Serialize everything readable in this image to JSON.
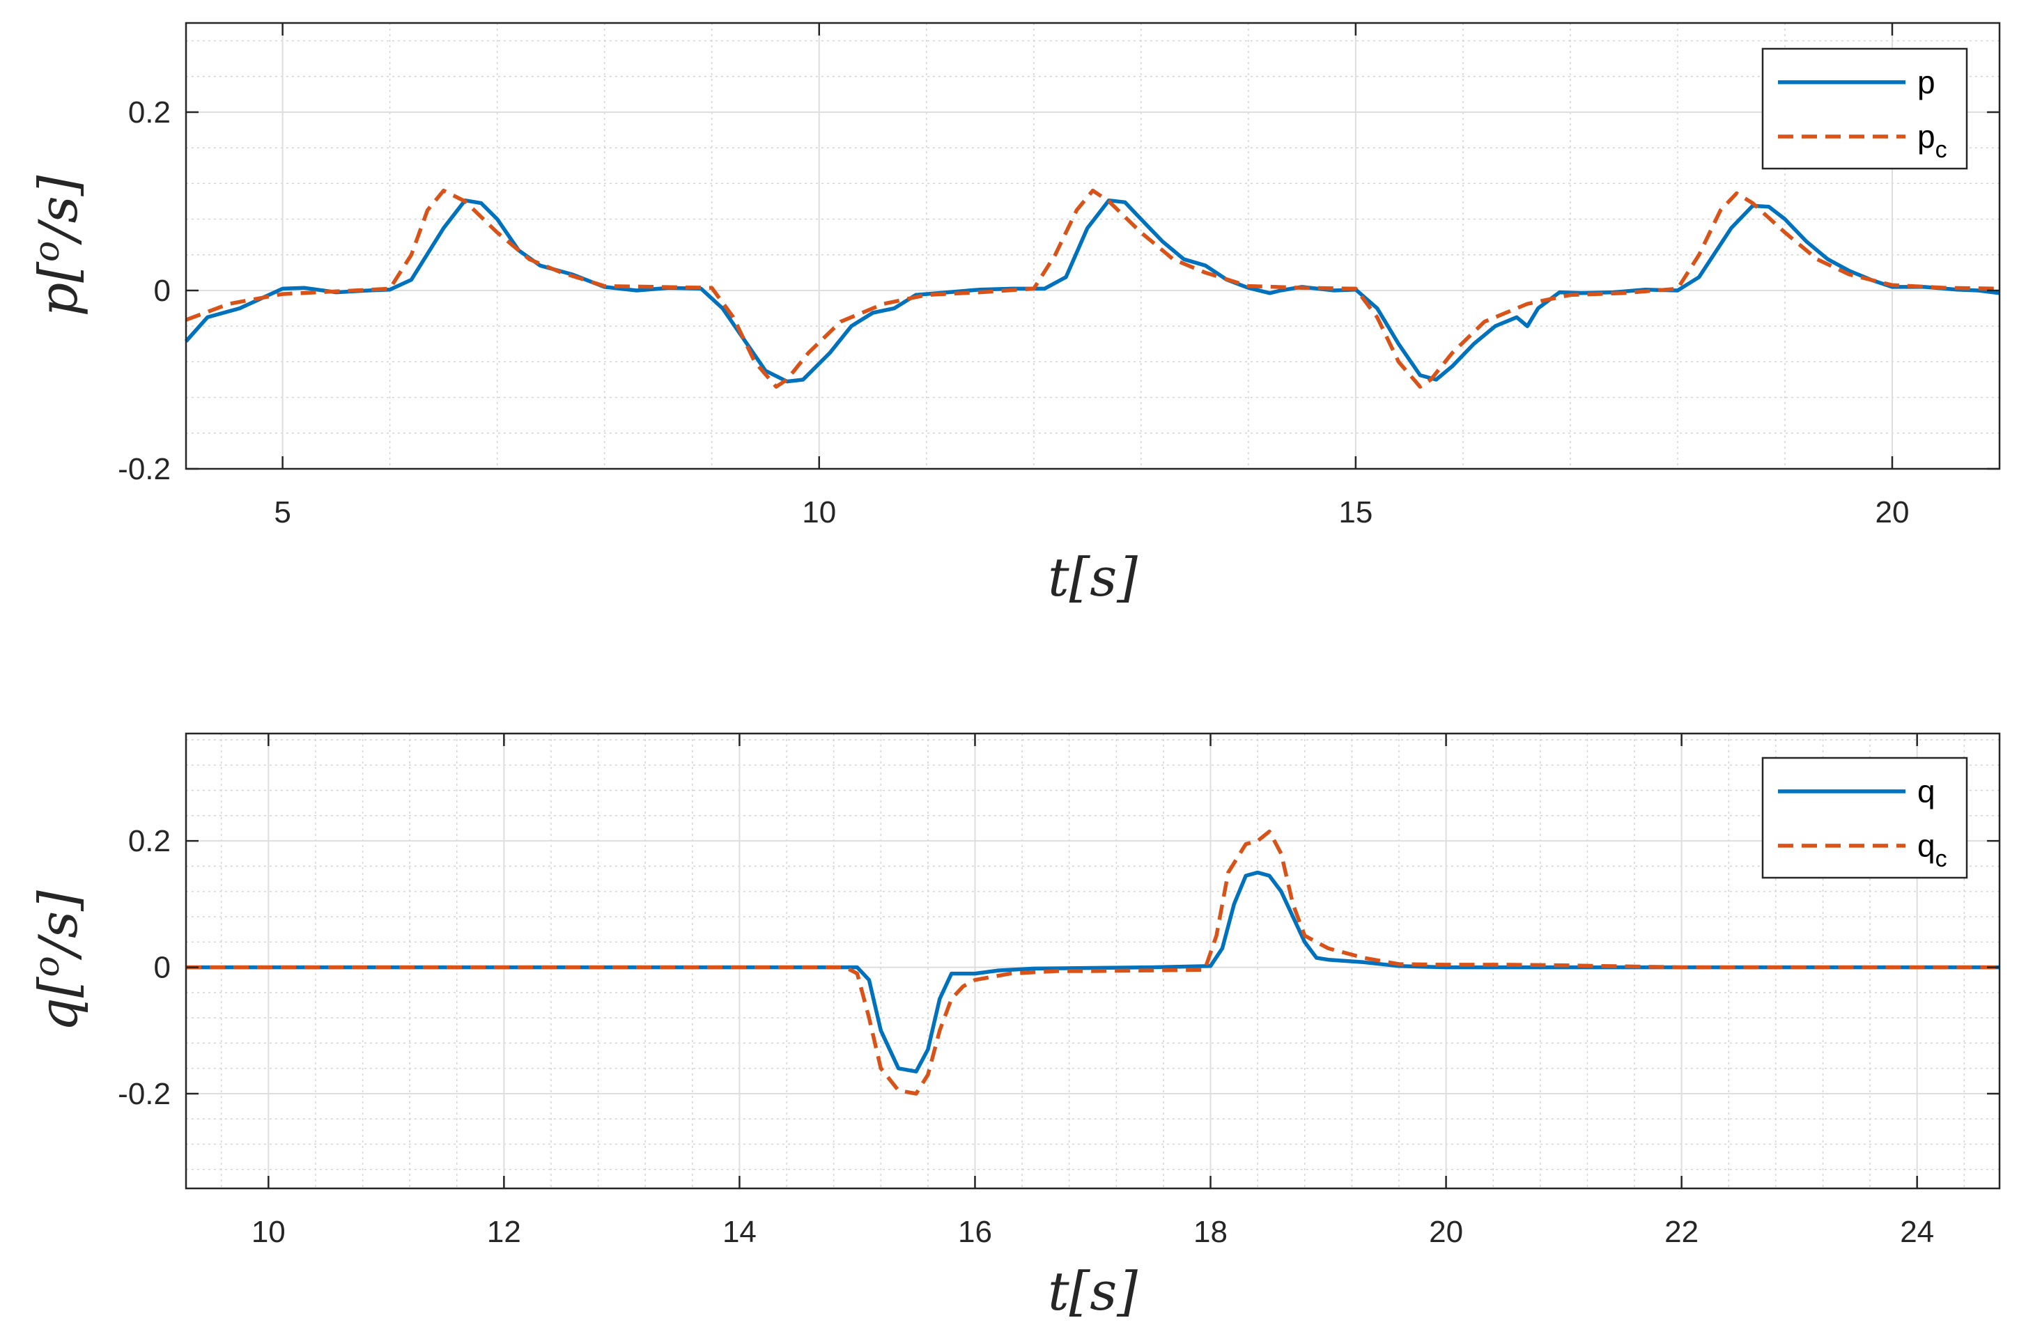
{
  "chart_data": [
    {
      "type": "line",
      "title": "",
      "xlabel": "t[s]",
      "ylabel": "p[o/s]",
      "ylabel_parts": {
        "var": "p",
        "sup": "o",
        "unit": "/s"
      },
      "xlim": [
        4.1,
        21
      ],
      "ylim": [
        -0.2,
        0.3
      ],
      "xticks": [
        5,
        10,
        15,
        20
      ],
      "xtick_labels": [
        "5",
        "10",
        "15",
        "20"
      ],
      "yticks": [
        -0.2,
        0,
        0.2
      ],
      "ytick_labels": [
        "-0.2",
        "0",
        "0.2"
      ],
      "grid": true,
      "minor_grid": true,
      "legend_position": "top-right",
      "series": [
        {
          "name": "p",
          "legend_main": "p",
          "legend_sub": "",
          "color": "#0072BD",
          "style": "solid",
          "x": [
            4.1,
            4.3,
            4.6,
            5.0,
            5.2,
            5.5,
            5.8,
            6.0,
            6.2,
            6.5,
            6.7,
            6.85,
            7.0,
            7.2,
            7.4,
            7.7,
            8.0,
            8.3,
            8.6,
            8.9,
            9.1,
            9.3,
            9.5,
            9.7,
            9.85,
            10.1,
            10.3,
            10.5,
            10.7,
            10.9,
            11.2,
            11.5,
            11.8,
            12.1,
            12.3,
            12.5,
            12.7,
            12.85,
            13.0,
            13.2,
            13.4,
            13.6,
            13.8,
            14.0,
            14.2,
            14.3,
            14.5,
            14.8,
            15.0,
            15.2,
            15.4,
            15.6,
            15.75,
            15.9,
            16.1,
            16.3,
            16.5,
            16.6,
            16.7,
            16.9,
            17.1,
            17.4,
            17.7,
            18.0,
            18.2,
            18.5,
            18.7,
            18.85,
            19.0,
            19.2,
            19.4,
            19.6,
            19.8,
            20.0,
            20.3,
            20.6,
            20.8,
            21.0
          ],
          "y": [
            -0.057,
            -0.03,
            -0.02,
            0.002,
            0.003,
            -0.002,
            0.0,
            0.001,
            0.012,
            0.07,
            0.101,
            0.098,
            0.08,
            0.045,
            0.028,
            0.018,
            0.004,
            0.0,
            0.003,
            0.002,
            -0.02,
            -0.055,
            -0.09,
            -0.102,
            -0.1,
            -0.07,
            -0.04,
            -0.025,
            -0.02,
            -0.005,
            -0.002,
            0.001,
            0.002,
            0.002,
            0.015,
            0.07,
            0.101,
            0.099,
            0.08,
            0.055,
            0.035,
            0.028,
            0.012,
            0.003,
            -0.003,
            0.0,
            0.004,
            0.0,
            0.001,
            -0.02,
            -0.06,
            -0.095,
            -0.1,
            -0.085,
            -0.06,
            -0.04,
            -0.03,
            -0.04,
            -0.02,
            -0.002,
            -0.003,
            -0.002,
            0.001,
            0.0,
            0.015,
            0.07,
            0.095,
            0.094,
            0.08,
            0.055,
            0.035,
            0.022,
            0.012,
            0.004,
            0.004,
            0.001,
            0.0,
            -0.003
          ]
        },
        {
          "name": "pc",
          "legend_main": "p",
          "legend_sub": "c",
          "color": "#D95319",
          "style": "dashed",
          "x": [
            4.1,
            4.5,
            5.0,
            5.5,
            6.0,
            6.2,
            6.35,
            6.5,
            6.7,
            7.0,
            7.3,
            7.6,
            8.0,
            8.5,
            9.0,
            9.2,
            9.4,
            9.6,
            9.7,
            9.9,
            10.2,
            10.6,
            11.0,
            11.5,
            12.0,
            12.2,
            12.4,
            12.55,
            12.7,
            13.0,
            13.3,
            13.6,
            14.0,
            14.5,
            15.0,
            15.2,
            15.4,
            15.6,
            15.7,
            15.9,
            16.2,
            16.6,
            17.0,
            17.5,
            18.0,
            18.2,
            18.4,
            18.55,
            18.7,
            19.0,
            19.3,
            19.6,
            20.0,
            20.5,
            21.0
          ],
          "y": [
            -0.033,
            -0.015,
            -0.004,
            -0.001,
            0.002,
            0.04,
            0.09,
            0.112,
            0.1,
            0.065,
            0.035,
            0.02,
            0.005,
            0.004,
            0.003,
            -0.03,
            -0.08,
            -0.108,
            -0.1,
            -0.07,
            -0.035,
            -0.015,
            -0.005,
            -0.002,
            0.002,
            0.04,
            0.09,
            0.112,
            0.1,
            0.065,
            0.035,
            0.02,
            0.005,
            0.003,
            0.002,
            -0.03,
            -0.08,
            -0.108,
            -0.1,
            -0.07,
            -0.035,
            -0.015,
            -0.005,
            -0.003,
            0.002,
            0.04,
            0.09,
            0.109,
            0.098,
            0.065,
            0.035,
            0.018,
            0.006,
            0.003,
            0.002
          ]
        }
      ]
    },
    {
      "type": "line",
      "title": "",
      "xlabel": "t[s]",
      "ylabel": "q[o/s]",
      "ylabel_parts": {
        "var": "q",
        "sup": "o",
        "unit": "/s"
      },
      "xlim": [
        9.3,
        24.7
      ],
      "ylim": [
        -0.35,
        0.37
      ],
      "xticks": [
        10,
        12,
        14,
        16,
        18,
        20,
        22,
        24
      ],
      "xtick_labels": [
        "10",
        "12",
        "14",
        "16",
        "18",
        "20",
        "22",
        "24"
      ],
      "yticks": [
        -0.2,
        0,
        0.2
      ],
      "ytick_labels": [
        "-0.2",
        "0",
        "0.2"
      ],
      "grid": true,
      "minor_grid": true,
      "legend_position": "top-right",
      "series": [
        {
          "name": "q",
          "legend_main": "q",
          "legend_sub": "",
          "color": "#0072BD",
          "style": "solid",
          "x": [
            9.3,
            12.0,
            15.0,
            15.1,
            15.2,
            15.35,
            15.5,
            15.6,
            15.7,
            15.8,
            15.9,
            16.0,
            16.2,
            16.5,
            17.0,
            17.5,
            18.0,
            18.1,
            18.2,
            18.3,
            18.4,
            18.5,
            18.6,
            18.7,
            18.8,
            18.9,
            19.0,
            19.3,
            19.6,
            20.0,
            21.0,
            22.0,
            23.0,
            24.7
          ],
          "y": [
            0,
            0,
            0,
            -0.02,
            -0.1,
            -0.16,
            -0.165,
            -0.13,
            -0.05,
            -0.01,
            -0.01,
            -0.01,
            -0.005,
            -0.002,
            -0.001,
            0.0,
            0.002,
            0.03,
            0.1,
            0.145,
            0.15,
            0.145,
            0.12,
            0.08,
            0.04,
            0.015,
            0.012,
            0.008,
            0.002,
            0.0,
            0.0,
            0.0,
            0.0,
            0.0
          ]
        },
        {
          "name": "qc",
          "legend_main": "q",
          "legend_sub": "c",
          "color": "#D95319",
          "style": "dashed",
          "x": [
            9.3,
            12.0,
            14.9,
            15.0,
            15.1,
            15.2,
            15.35,
            15.5,
            15.6,
            15.7,
            15.8,
            15.9,
            16.0,
            16.3,
            16.7,
            17.0,
            17.5,
            17.95,
            18.05,
            18.15,
            18.3,
            18.4,
            18.5,
            18.6,
            18.7,
            18.8,
            18.9,
            19.0,
            19.3,
            19.6,
            20.0,
            20.5,
            21.0,
            22.0,
            23.0,
            24.7
          ],
          "y": [
            0,
            0,
            0,
            -0.01,
            -0.08,
            -0.16,
            -0.195,
            -0.2,
            -0.17,
            -0.1,
            -0.05,
            -0.03,
            -0.02,
            -0.01,
            -0.006,
            -0.006,
            -0.005,
            -0.004,
            0.05,
            0.15,
            0.195,
            0.2,
            0.215,
            0.18,
            0.1,
            0.05,
            0.04,
            0.03,
            0.015,
            0.005,
            0.004,
            0.004,
            0.003,
            0.0,
            0.0,
            0.0
          ]
        }
      ]
    }
  ]
}
